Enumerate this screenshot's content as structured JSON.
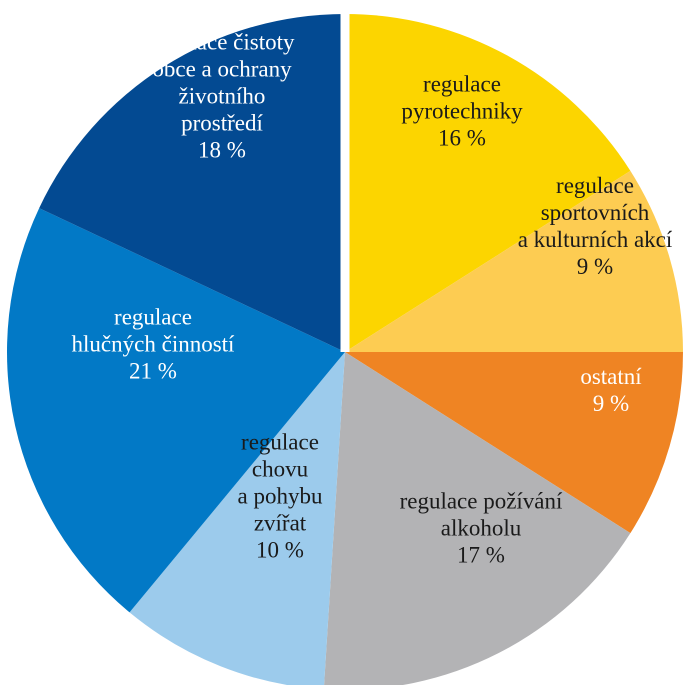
{
  "chart_data": {
    "type": "pie",
    "slices": [
      {
        "lines": [
          "regulace",
          "pyrotechniky"
        ],
        "value_label": "16 %",
        "value": 16,
        "color": "#fcd500",
        "text_color": "#1a1a1a"
      },
      {
        "lines": [
          "regulace",
          "sportovních",
          "a kulturních akcí"
        ],
        "value_label": "9 %",
        "value": 9,
        "color": "#fdcc52",
        "text_color": "#1a1a1a"
      },
      {
        "lines": [
          "ostatní"
        ],
        "value_label": "9 %",
        "value": 9,
        "color": "#ef8423",
        "text_color": "#ffffff"
      },
      {
        "lines": [
          "regulace požívání",
          "alkoholu"
        ],
        "value_label": "17 %",
        "value": 17,
        "color": "#b3b3b5",
        "text_color": "#1a1a1a"
      },
      {
        "lines": [
          "regulace",
          "chovu",
          "a pohybu",
          "zvířat"
        ],
        "value_label": "10 %",
        "value": 10,
        "color": "#9ccbec",
        "text_color": "#1a1a1a"
      },
      {
        "lines": [
          "regulace",
          "hlučných činností"
        ],
        "value_label": "21 %",
        "value": 21,
        "color": "#0279c6",
        "text_color": "#ffffff"
      },
      {
        "lines": [
          "regulace čistoty",
          "obce a ochrany",
          "životního",
          "prostředí"
        ],
        "value_label": "18 %",
        "value": 18,
        "color": "#034a92",
        "text_color": "#ffffff"
      }
    ]
  }
}
